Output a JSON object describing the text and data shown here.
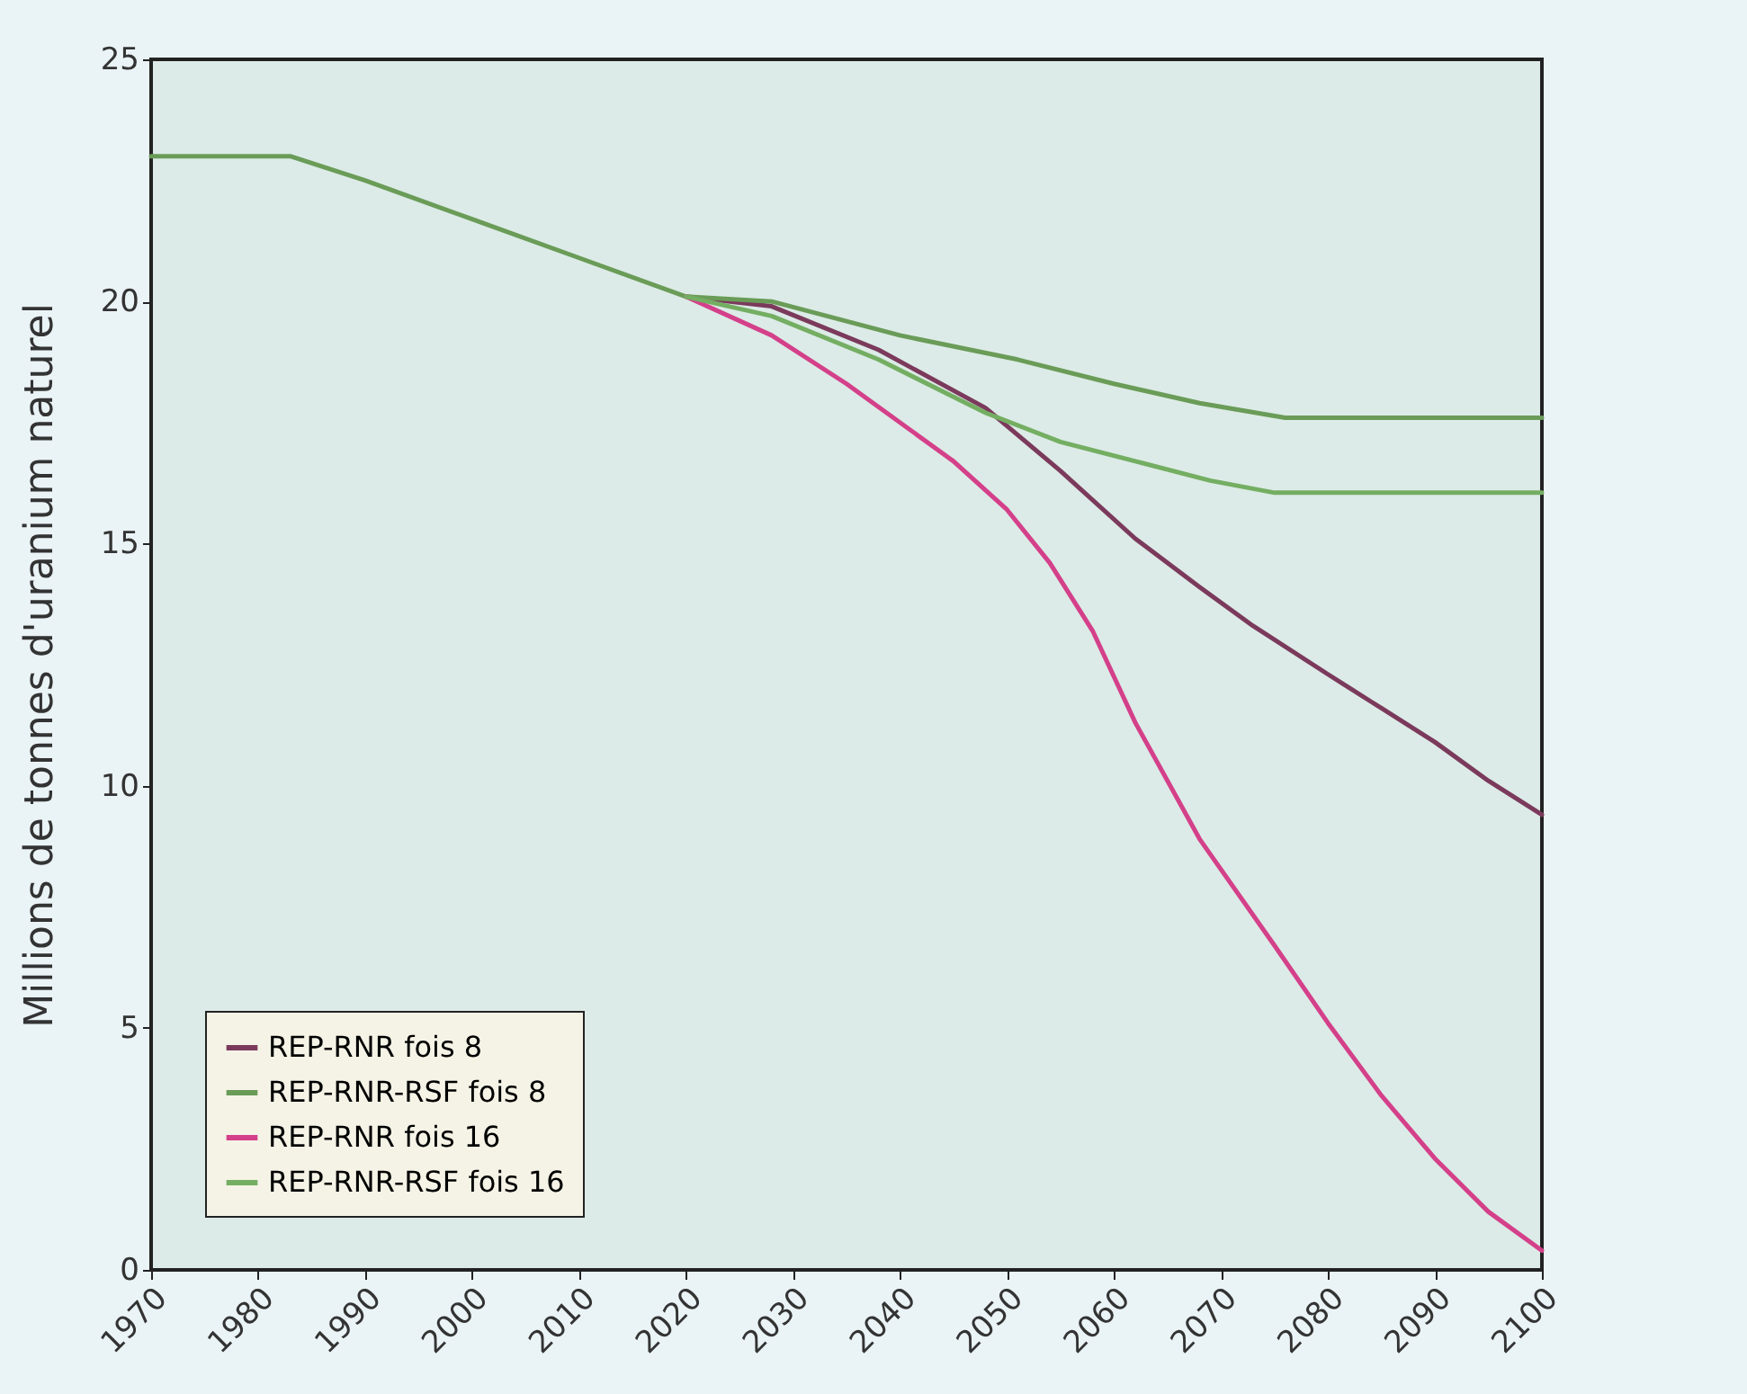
{
  "chart_data": {
    "type": "line",
    "ylabel": "Millions de tonnes d'uranium naturel",
    "xlim": [
      1970,
      2100
    ],
    "xticks": [
      1970,
      1980,
      1990,
      2000,
      2010,
      2020,
      2030,
      2040,
      2050,
      2060,
      2070,
      2080,
      2090,
      2100
    ],
    "ylim": [
      0,
      25
    ],
    "yticks": [
      0,
      5,
      10,
      15,
      20,
      25
    ],
    "grid": false,
    "legend": "bottom left",
    "line_style": "solid",
    "marker": "none",
    "series": [
      {
        "name": "REP-RNR fois 8",
        "color": "#7b3a5c",
        "x": [
          2020,
          2028,
          2038,
          2048,
          2055,
          2062,
          2068,
          2073,
          2080,
          2085,
          2090,
          2095,
          2100
        ],
        "values": [
          20.1,
          19.9,
          19.0,
          17.8,
          16.5,
          15.1,
          14.1,
          13.3,
          12.3,
          11.6,
          10.9,
          10.1,
          9.4
        ]
      },
      {
        "name": "REP-RNR-RSF fois 8",
        "color": "#6a9c58",
        "x": [
          1970,
          1983,
          1990,
          2000,
          2010,
          2020,
          2028,
          2040,
          2051,
          2060,
          2068,
          2076,
          2085,
          2100
        ],
        "values": [
          23,
          23,
          22.5,
          21.7,
          20.9,
          20.1,
          20.0,
          19.3,
          18.8,
          18.3,
          17.9,
          17.6,
          17.6,
          17.6
        ]
      },
      {
        "name": "REP-RNR fois 16",
        "color": "#d4408a",
        "x": [
          2020,
          2028,
          2035,
          2045,
          2050,
          2054,
          2058,
          2062,
          2068,
          2075,
          2080,
          2085,
          2090,
          2095,
          2100
        ],
        "values": [
          20.1,
          19.3,
          18.3,
          16.7,
          15.7,
          14.6,
          13.2,
          11.3,
          8.9,
          6.7,
          5.1,
          3.6,
          2.3,
          1.2,
          0.4
        ]
      },
      {
        "name": "REP-RNR-RSF fois 16",
        "color": "#74ae62",
        "x": [
          2020,
          2028,
          2038,
          2048,
          2055,
          2062,
          2069,
          2075,
          2085,
          2100
        ],
        "values": [
          20.1,
          19.7,
          18.8,
          17.7,
          17.1,
          16.7,
          16.3,
          16.05,
          16.05,
          16.05
        ]
      }
    ]
  }
}
